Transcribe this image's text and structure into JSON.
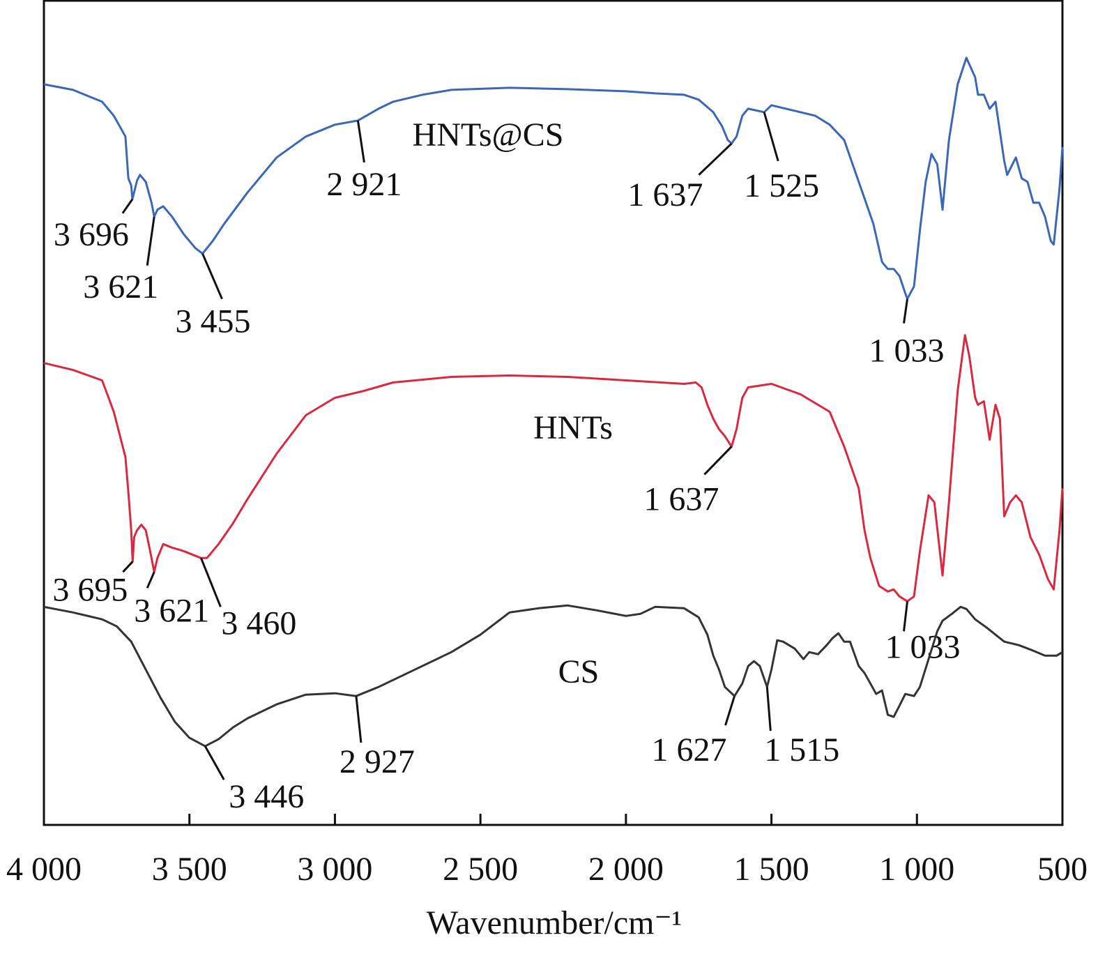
{
  "chart_data": {
    "type": "line",
    "x_label": "Wavenumber/cm⁻¹",
    "xlim": [
      4000,
      500
    ],
    "ylim": [
      0,
      118.3
    ],
    "xticks": [
      {
        "value": 4000,
        "label": "4 000"
      },
      {
        "value": 3500,
        "label": "3 500"
      },
      {
        "value": 3000,
        "label": "3 000"
      },
      {
        "value": 2500,
        "label": "2 500"
      },
      {
        "value": 2000,
        "label": "2 000"
      },
      {
        "value": 1500,
        "label": "1 500"
      },
      {
        "value": 1000,
        "label": "1 000"
      },
      500
    ],
    "series": [
      {
        "name": "HNTs@CS",
        "color": "#3a67b8",
        "x": [
          4000,
          3900,
          3800,
          3760,
          3720,
          3710,
          3700,
          3696,
          3680,
          3670,
          3650,
          3630,
          3621,
          3610,
          3590,
          3560,
          3520,
          3480,
          3455,
          3420,
          3380,
          3300,
          3200,
          3100,
          3000,
          2921,
          2850,
          2800,
          2700,
          2600,
          2400,
          2200,
          2000,
          1900,
          1800,
          1750,
          1700,
          1670,
          1650,
          1637,
          1620,
          1600,
          1580,
          1525,
          1500,
          1450,
          1400,
          1350,
          1300,
          1250,
          1200,
          1150,
          1120,
          1100,
          1080,
          1060,
          1040,
          1033,
          1010,
          990,
          970,
          950,
          930,
          912,
          890,
          860,
          830,
          800,
          790,
          770,
          750,
          730,
          700,
          690,
          660,
          640,
          620,
          600,
          580,
          560,
          540,
          530,
          510,
          500
        ],
        "values": [
          106.3,
          105.5,
          103.8,
          101.8,
          98.8,
          92.8,
          91.8,
          89.8,
          92.5,
          93.3,
          92.3,
          89.3,
          87.3,
          88.3,
          88.8,
          87.3,
          84.8,
          82.8,
          82.0,
          83.8,
          86.3,
          90.8,
          95.8,
          98.8,
          100.5,
          101.1,
          102.8,
          103.8,
          104.8,
          105.5,
          105.8,
          105.6,
          105.3,
          105.0,
          104.8,
          104.1,
          102.3,
          100.3,
          98.3,
          97.8,
          98.8,
          101.8,
          102.8,
          102.3,
          103.3,
          102.8,
          102.3,
          101.8,
          100.5,
          98.3,
          92.3,
          86.3,
          80.8,
          79.8,
          79.8,
          78.8,
          76.3,
          75.5,
          77.3,
          85.3,
          92.3,
          96.3,
          94.8,
          88.3,
          98.3,
          106.3,
          110.1,
          107.3,
          104.8,
          104.8,
          102.8,
          103.8,
          95.3,
          93.3,
          95.8,
          92.8,
          92.3,
          89.3,
          89.3,
          87.3,
          83.8,
          83.3,
          91.3,
          97.3
        ],
        "peaks": [
          {
            "x": 3696,
            "label": "3 696"
          },
          {
            "x": 3621,
            "label": "3 621"
          },
          {
            "x": 3455,
            "label": "3 455"
          },
          {
            "x": 2921,
            "label": "2 921"
          },
          {
            "x": 1637,
            "label": "1 637"
          },
          {
            "x": 1525,
            "label": "1 525"
          },
          {
            "x": 1033,
            "label": "1 033"
          }
        ]
      },
      {
        "name": "HNTs",
        "color": "#d9283f",
        "x": [
          4000,
          3900,
          3800,
          3760,
          3720,
          3710,
          3700,
          3695,
          3690,
          3680,
          3665,
          3650,
          3635,
          3621,
          3610,
          3590,
          3560,
          3520,
          3460,
          3440,
          3400,
          3350,
          3300,
          3200,
          3100,
          3000,
          2900,
          2800,
          2600,
          2400,
          2200,
          2000,
          1800,
          1760,
          1740,
          1720,
          1700,
          1680,
          1660,
          1637,
          1620,
          1600,
          1580,
          1500,
          1400,
          1300,
          1250,
          1200,
          1180,
          1160,
          1130,
          1100,
          1080,
          1060,
          1033,
          1010,
          990,
          960,
          940,
          912,
          890,
          860,
          835,
          820,
          800,
          790,
          770,
          750,
          730,
          715,
          700,
          680,
          660,
          640,
          610,
          580,
          550,
          530,
          510,
          500
        ],
        "values": [
          66.3,
          65.3,
          63.8,
          59.3,
          52.8,
          47.8,
          42.3,
          37.8,
          41.3,
          42.3,
          43.1,
          42.3,
          39.3,
          36.3,
          38.3,
          40.3,
          39.8,
          39.3,
          38.3,
          38.3,
          40.3,
          43.3,
          46.8,
          53.3,
          58.8,
          61.3,
          62.3,
          63.5,
          64.3,
          64.5,
          64.3,
          63.8,
          63.3,
          63.5,
          62.8,
          60.3,
          58.3,
          56.8,
          55.8,
          54.3,
          56.8,
          61.3,
          62.8,
          63.3,
          61.8,
          59.3,
          54.3,
          48.3,
          42.3,
          38.3,
          34.3,
          33.5,
          33.8,
          32.8,
          32.1,
          32.8,
          39.3,
          47.3,
          46.3,
          35.8,
          46.3,
          62.3,
          70.3,
          67.3,
          61.3,
          60.3,
          60.8,
          55.3,
          60.3,
          58.3,
          44.3,
          46.3,
          47.3,
          46.3,
          41.3,
          38.8,
          35.3,
          33.8,
          42.3,
          48.3
        ],
        "peaks": [
          {
            "x": 3695,
            "label": "3 695"
          },
          {
            "x": 3621,
            "label": "3 621"
          },
          {
            "x": 3460,
            "label": "3 460"
          },
          {
            "x": 1637,
            "label": "1 637"
          },
          {
            "x": 1033,
            "label": "1 033"
          }
        ]
      },
      {
        "name": "CS",
        "color": "#333333",
        "x": [
          4000,
          3900,
          3800,
          3750,
          3700,
          3650,
          3600,
          3550,
          3500,
          3446,
          3400,
          3350,
          3300,
          3200,
          3100,
          3000,
          2927,
          2850,
          2800,
          2700,
          2600,
          2500,
          2400,
          2300,
          2200,
          2100,
          2000,
          1950,
          1900,
          1800,
          1750,
          1720,
          1700,
          1680,
          1660,
          1627,
          1600,
          1580,
          1560,
          1540,
          1515,
          1500,
          1480,
          1460,
          1420,
          1390,
          1370,
          1340,
          1310,
          1290,
          1270,
          1250,
          1230,
          1200,
          1180,
          1160,
          1140,
          1120,
          1100,
          1080,
          1060,
          1040,
          1010,
          990,
          960,
          930,
          912,
          880,
          850,
          830,
          800,
          760,
          700,
          650,
          600,
          560,
          520,
          500
        ],
        "values": [
          31.3,
          30.5,
          29.5,
          28.5,
          26.3,
          22.3,
          18.3,
          14.8,
          12.5,
          11.3,
          12.3,
          14.0,
          15.3,
          17.3,
          18.7,
          18.9,
          18.5,
          19.8,
          20.8,
          22.8,
          24.8,
          27.3,
          30.5,
          31.1,
          31.5,
          30.8,
          30.0,
          30.3,
          31.3,
          31.1,
          29.8,
          27.3,
          24.3,
          22.3,
          19.8,
          18.5,
          20.3,
          22.8,
          23.5,
          22.8,
          19.8,
          22.3,
          26.5,
          26.3,
          25.3,
          23.8,
          24.8,
          24.5,
          25.8,
          26.8,
          27.5,
          26.3,
          26.3,
          22.8,
          21.8,
          20.3,
          18.8,
          19.3,
          15.8,
          15.5,
          17.1,
          18.8,
          18.5,
          19.8,
          23.8,
          27.8,
          29.3,
          30.3,
          31.3,
          31.0,
          29.5,
          28.3,
          26.3,
          25.8,
          25.0,
          24.3,
          24.3,
          24.8
        ],
        "peaks": [
          {
            "x": 3446,
            "label": "3 446"
          },
          {
            "x": 2927,
            "label": "2 927"
          },
          {
            "x": 1627,
            "label": "1 627"
          },
          {
            "x": 1515,
            "label": "1 515"
          }
        ]
      }
    ]
  }
}
